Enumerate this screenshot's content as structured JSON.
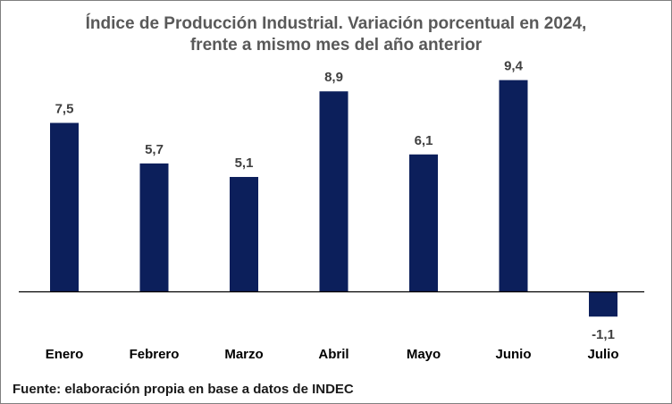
{
  "chart_data": {
    "type": "bar",
    "title_line1": "Índice de Producción Industrial. Variación porcentual en 2024,",
    "title_line2": "frente a mismo mes del año anterior",
    "categories": [
      "Enero",
      "Febrero",
      "Marzo",
      "Abril",
      "Mayo",
      "Junio",
      "Julio"
    ],
    "values": [
      7.5,
      5.7,
      5.1,
      8.9,
      6.1,
      9.4,
      -1.1
    ],
    "data_labels": [
      "7,5",
      "5,7",
      "5,1",
      "8,9",
      "6,1",
      "9,4",
      "-1,1"
    ],
    "bar_color": "#0c1f5b",
    "axis_color": "#000000",
    "grid": false,
    "legend": "none",
    "ylim": [
      -1.1,
      9.4
    ]
  },
  "source_note": "Fuente: elaboración propia en base a datos de INDEC"
}
